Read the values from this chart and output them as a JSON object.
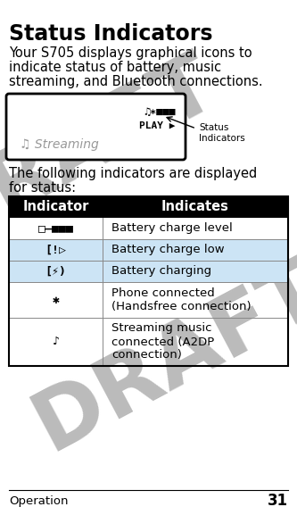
{
  "title": "Status Indicators",
  "body_text_lines": [
    "Your S705 displays graphical icons to",
    "indicate status of battery, music",
    "streaming, and Bluetooth connections."
  ],
  "body_text2_lines": [
    "The following indicators are displayed",
    "for status:"
  ],
  "table_header": [
    "Indicator",
    "Indicates"
  ],
  "row_indicates": [
    "Battery charge level",
    "Battery charge low",
    "Battery charging",
    "Phone connected\n(Handsfree connection)",
    "Streaming music\nconnected (A2DP\nconnection)"
  ],
  "footer_text": "Operation",
  "footer_num": "31",
  "draft_color": "#bbbbbb",
  "bg_color": "#ffffff",
  "header_bg": "#000000",
  "header_fg": "#ffffff",
  "row_highlight": "#cce4f5",
  "screen_box_bg": "#ffffff",
  "screen_box_border": "#000000",
  "streaming_text_color": "#999999",
  "annotation_text": "Status\nIndicators",
  "title_fontsize": 17,
  "body_fontsize": 10.5,
  "table_header_fontsize": 10.5,
  "table_body_fontsize": 9.5,
  "footer_fontsize": 9.5,
  "footer_num_fontsize": 12
}
